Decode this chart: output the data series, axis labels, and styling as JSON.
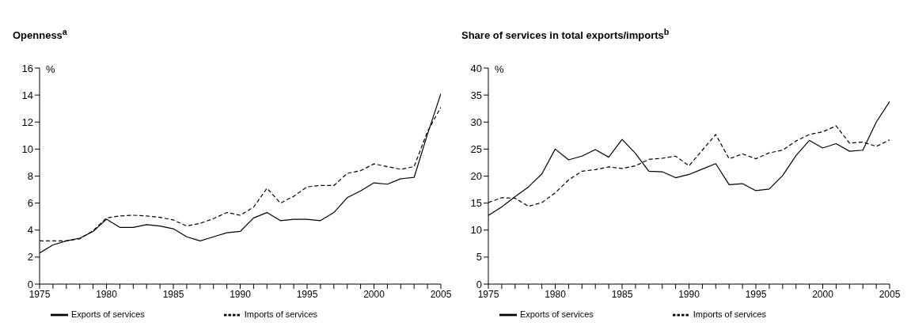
{
  "chart_data": [
    {
      "type": "line",
      "title": "Openness$^{a}$",
      "ylabel": "%",
      "x": [
        1975,
        1976,
        1977,
        1978,
        1979,
        1980,
        1981,
        1982,
        1983,
        1984,
        1985,
        1986,
        1987,
        1988,
        1989,
        1990,
        1991,
        1992,
        1993,
        1994,
        1995,
        1996,
        1997,
        1998,
        1999,
        2000,
        2001,
        2002,
        2003,
        2004,
        2005
      ],
      "series": [
        {
          "name": "Exports of services",
          "color": "#000000",
          "line_style": "solid",
          "values": [
            2.3,
            2.9,
            3.2,
            3.4,
            3.9,
            4.8,
            4.2,
            4.2,
            4.4,
            4.3,
            4.1,
            3.5,
            3.2,
            3.5,
            3.8,
            3.9,
            4.9,
            5.3,
            4.7,
            4.8,
            4.8,
            4.7,
            5.3,
            6.4,
            6.9,
            7.5,
            7.4,
            7.8,
            7.9,
            11.1,
            14.1
          ]
        },
        {
          "name": "Imports of services",
          "color": "#000000",
          "line_style": "dashed",
          "values": [
            3.2,
            3.2,
            3.2,
            3.35,
            3.95,
            4.9,
            5.05,
            5.1,
            5.05,
            4.95,
            4.75,
            4.3,
            4.5,
            4.85,
            5.3,
            5.1,
            5.7,
            7.1,
            6.0,
            6.5,
            7.2,
            7.3,
            7.3,
            8.2,
            8.4,
            8.9,
            8.7,
            8.5,
            8.7,
            11.3,
            13.1
          ]
        }
      ],
      "xlim": [
        1975,
        2005
      ],
      "xticks": [
        1975,
        {
          "value": 1976,
          "label": null
        },
        {
          "value": 1977,
          "label": null
        },
        {
          "value": 1978,
          "label": null
        },
        {
          "value": 1979,
          "label": null
        },
        1980,
        {
          "value": 1981,
          "label": null
        },
        {
          "value": 1982,
          "label": null
        },
        {
          "value": 1983,
          "label": null
        },
        {
          "value": 1984,
          "label": null
        },
        1985,
        {
          "value": 1986,
          "label": null
        },
        {
          "value": 1987,
          "label": null
        },
        {
          "value": 1988,
          "label": null
        },
        {
          "value": 1989,
          "label": null
        },
        1990,
        {
          "value": 1991,
          "label": null
        },
        {
          "value": 1992,
          "label": null
        },
        {
          "value": 1993,
          "label": null
        },
        {
          "value": 1994,
          "label": null
        },
        1995,
        {
          "value": 1996,
          "label": null
        },
        {
          "value": 1997,
          "label": null
        },
        {
          "value": 1998,
          "label": null
        },
        {
          "value": 1999,
          "label": null
        },
        2000,
        {
          "value": 2001,
          "label": null
        },
        {
          "value": 2002,
          "label": null
        },
        {
          "value": 2003,
          "label": null
        },
        {
          "value": 2004,
          "label": null
        },
        2005
      ],
      "ylim": [
        0,
        16
      ],
      "yticks": [
        0,
        2,
        4,
        6,
        8,
        10,
        12,
        14,
        16
      ],
      "grid": false,
      "legend": "bottom",
      "marker": "none"
    },
    {
      "type": "line",
      "title": "Share of services in total exports/imports$^{b}$",
      "ylabel": "%",
      "x": [
        1975,
        1976,
        1977,
        1978,
        1979,
        1980,
        1981,
        1982,
        1983,
        1984,
        1985,
        1986,
        1987,
        1988,
        1989,
        1990,
        1991,
        1992,
        1993,
        1994,
        1995,
        1996,
        1997,
        1998,
        1999,
        2000,
        2001,
        2002,
        2003,
        2004,
        2005
      ],
      "series": [
        {
          "name": "Exports of services",
          "color": "#000000",
          "line_style": "solid",
          "values": [
            12.7,
            14.3,
            16.2,
            18.0,
            20.4,
            25.0,
            23.0,
            23.7,
            24.9,
            23.5,
            26.8,
            24.2,
            20.9,
            20.8,
            19.7,
            20.3,
            21.3,
            22.3,
            18.4,
            18.6,
            17.3,
            17.6,
            20.1,
            23.8,
            26.6,
            25.2,
            26.0,
            24.6,
            24.8,
            30.0,
            33.8
          ]
        },
        {
          "name": "Imports of services",
          "color": "#000000",
          "line_style": "dashed",
          "values": [
            15.1,
            16.0,
            15.9,
            14.4,
            15.1,
            16.9,
            19.3,
            20.9,
            21.2,
            21.7,
            21.4,
            21.9,
            23.1,
            23.3,
            23.7,
            21.9,
            24.8,
            27.7,
            23.2,
            24.1,
            23.2,
            24.3,
            24.8,
            26.5,
            27.7,
            28.2,
            29.3,
            26.1,
            26.3,
            25.5,
            26.7
          ]
        }
      ],
      "xlim": [
        1975,
        2005
      ],
      "xticks": [
        1975,
        {
          "value": 1976,
          "label": null
        },
        {
          "value": 1977,
          "label": null
        },
        {
          "value": 1978,
          "label": null
        },
        {
          "value": 1979,
          "label": null
        },
        1980,
        {
          "value": 1981,
          "label": null
        },
        {
          "value": 1982,
          "label": null
        },
        {
          "value": 1983,
          "label": null
        },
        {
          "value": 1984,
          "label": null
        },
        1985,
        {
          "value": 1986,
          "label": null
        },
        {
          "value": 1987,
          "label": null
        },
        {
          "value": 1988,
          "label": null
        },
        {
          "value": 1989,
          "label": null
        },
        1990,
        {
          "value": 1991,
          "label": null
        },
        {
          "value": 1992,
          "label": null
        },
        {
          "value": 1993,
          "label": null
        },
        {
          "value": 1994,
          "label": null
        },
        1995,
        {
          "value": 1996,
          "label": null
        },
        {
          "value": 1997,
          "label": null
        },
        {
          "value": 1998,
          "label": null
        },
        {
          "value": 1999,
          "label": null
        },
        2000,
        {
          "value": 2001,
          "label": null
        },
        {
          "value": 2002,
          "label": null
        },
        {
          "value": 2003,
          "label": null
        },
        {
          "value": 2004,
          "label": null
        },
        2005
      ],
      "ylim": [
        0,
        40
      ],
      "yticks": [
        0,
        5,
        10,
        15,
        20,
        25,
        30,
        35,
        40
      ],
      "grid": false,
      "legend": "bottom",
      "marker": "none"
    }
  ]
}
